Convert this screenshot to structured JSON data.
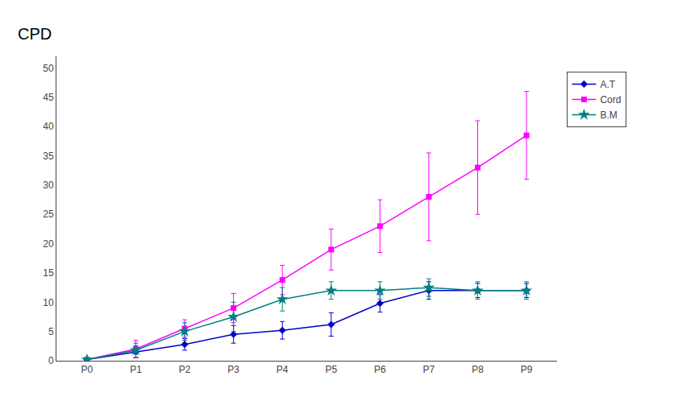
{
  "chart_data": {
    "type": "line",
    "ylabel": "CPD",
    "categories": [
      "P0",
      "P1",
      "P2",
      "P3",
      "P4",
      "P5",
      "P6",
      "P7",
      "P8",
      "P9"
    ],
    "series": [
      {
        "name": "A.T",
        "color": "#0000CD",
        "marker": "diamond",
        "values": [
          0.2,
          1.5,
          2.8,
          4.5,
          5.2,
          6.2,
          9.8,
          12.0,
          12.0,
          12.0
        ],
        "yerr": [
          0.2,
          1.0,
          1.0,
          1.5,
          1.5,
          2.0,
          1.5,
          1.5,
          1.2,
          1.2
        ]
      },
      {
        "name": "Cord",
        "color": "#FF00FF",
        "marker": "square",
        "values": [
          0.2,
          2.0,
          5.5,
          9.0,
          13.8,
          19.0,
          23.0,
          28.0,
          33.0,
          38.5
        ],
        "yerr": [
          0.2,
          1.5,
          1.5,
          2.5,
          2.5,
          3.5,
          4.5,
          7.5,
          8.0,
          7.5
        ]
      },
      {
        "name": "B.M",
        "color": "#008080",
        "marker": "star",
        "values": [
          0.2,
          1.8,
          5.0,
          7.5,
          10.5,
          12.0,
          12.0,
          12.5,
          12.0,
          12.0
        ],
        "yerr": [
          0.2,
          1.2,
          1.5,
          2.5,
          2.0,
          1.5,
          1.5,
          1.5,
          1.5,
          1.5
        ]
      }
    ],
    "ylim": [
      0,
      52
    ],
    "yticks": [
      0,
      5,
      10,
      15,
      20,
      25,
      30,
      35,
      40,
      45,
      50
    ],
    "grid": false,
    "legend": "upper right"
  }
}
